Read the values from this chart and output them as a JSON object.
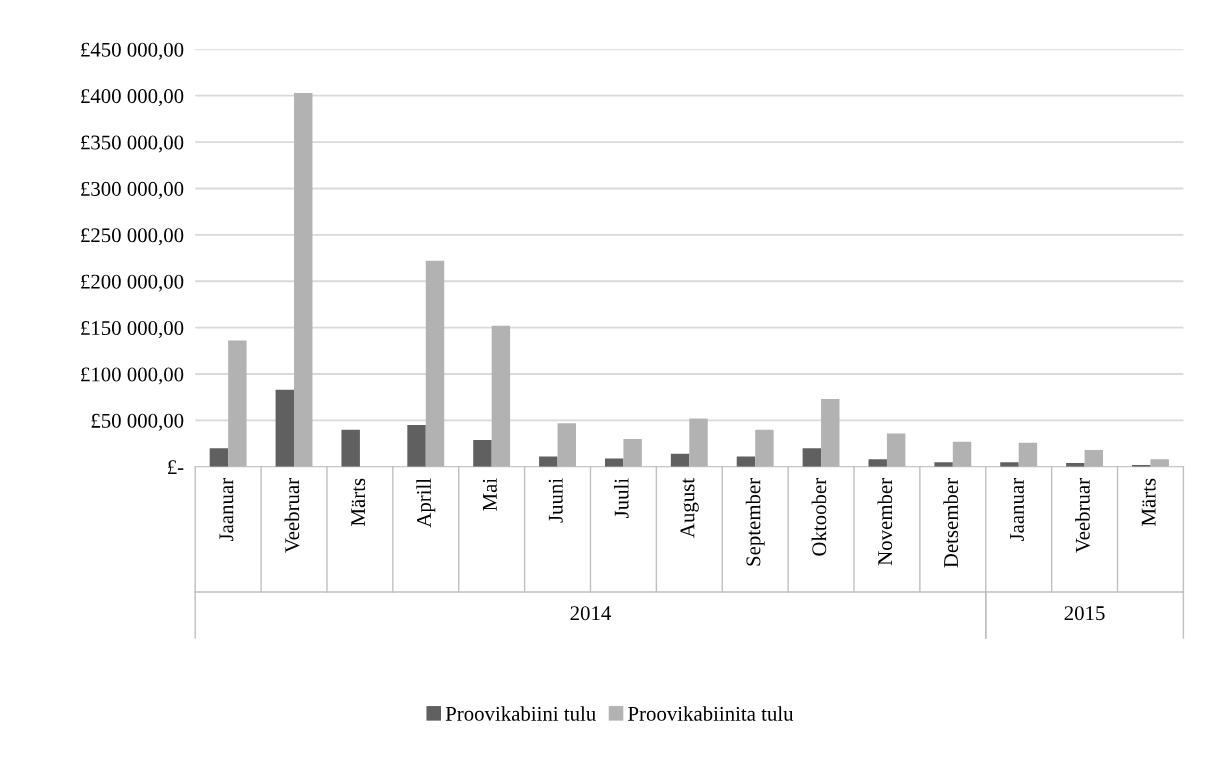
{
  "chart_data": {
    "type": "bar",
    "categories": [
      "Jaanuar",
      "Veebruar",
      "Märts",
      "Aprill",
      "Mai",
      "Juuni",
      "Juuli",
      "August",
      "September",
      "Oktoober",
      "November",
      "Detsember",
      "Jaanuar",
      "Veebruar",
      "Märts"
    ],
    "series": [
      {
        "name": "Proovikabiini tulu",
        "color": "#606060",
        "values": [
          20000,
          83000,
          40000,
          45000,
          29000,
          11000,
          9000,
          14000,
          11000,
          20000,
          8000,
          5000,
          5000,
          4000,
          2000
        ]
      },
      {
        "name": "Proovikabiinita tulu",
        "color": "#b2b2b2",
        "values": [
          136000,
          403000,
          null,
          222000,
          152000,
          47000,
          30000,
          52000,
          40000,
          73000,
          36000,
          27000,
          26000,
          18000,
          8000
        ]
      }
    ],
    "ylim": [
      0,
      450000
    ],
    "yticks": [
      {
        "value": 0,
        "label": "£-"
      },
      {
        "value": 50000,
        "label": "£50 000,00"
      },
      {
        "value": 100000,
        "label": "£100 000,00"
      },
      {
        "value": 150000,
        "label": "£150 000,00"
      },
      {
        "value": 200000,
        "label": "£200 000,00"
      },
      {
        "value": 250000,
        "label": "£250 000,00"
      },
      {
        "value": 300000,
        "label": "£300 000,00"
      },
      {
        "value": 350000,
        "label": "£350 000,00"
      },
      {
        "value": 400000,
        "label": "£400 000,00"
      },
      {
        "value": 450000,
        "label": "£450 000,00"
      }
    ],
    "annotations": [
      "2014",
      "2015"
    ],
    "grid": "y",
    "legend": "bottom"
  }
}
